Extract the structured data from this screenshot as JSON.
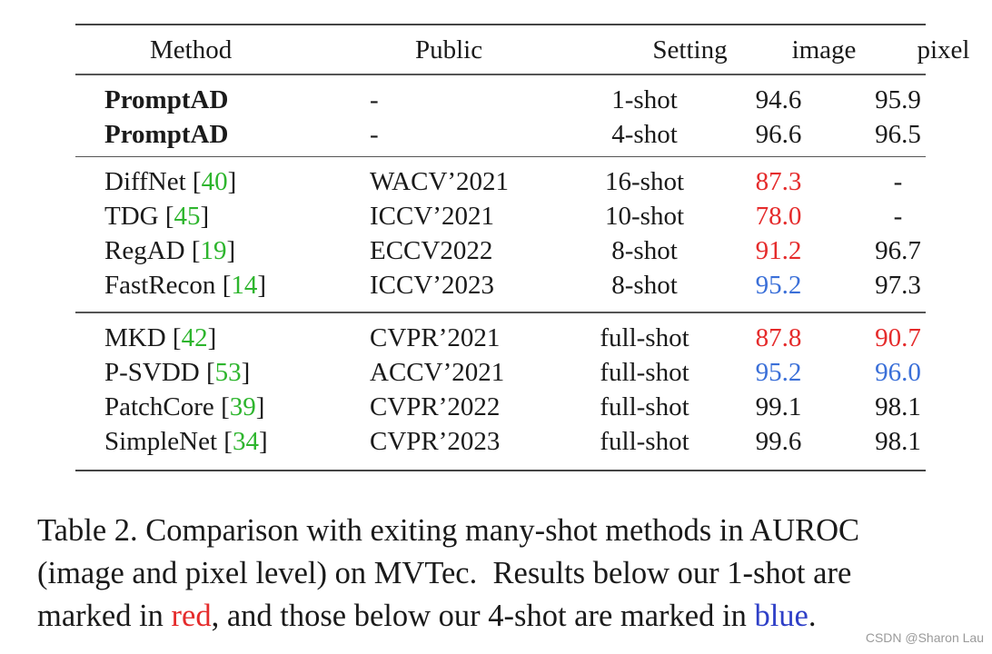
{
  "table": {
    "headers": [
      "Method",
      "Public",
      "Setting",
      "image",
      "pixel"
    ],
    "groups": [
      [
        {
          "method": "PromptAD",
          "ref": "",
          "public": "-",
          "setting": "1-shot",
          "image": "94.6",
          "pixel": "95.9",
          "image_color": "",
          "pixel_color": "",
          "bold": true
        },
        {
          "method": "PromptAD",
          "ref": "",
          "public": "-",
          "setting": "4-shot",
          "image": "96.6",
          "pixel": "96.5",
          "image_color": "",
          "pixel_color": "",
          "bold": true
        }
      ],
      [
        {
          "method": "DiffNet ",
          "ref": "40",
          "public": "WACV’2021",
          "setting": "16-shot",
          "image": "87.3",
          "pixel": "-",
          "image_color": "red",
          "pixel_color": "",
          "bold": false
        },
        {
          "method": "TDG ",
          "ref": "45",
          "public": "ICCV’2021",
          "setting": "10-shot",
          "image": "78.0",
          "pixel": "-",
          "image_color": "red",
          "pixel_color": "",
          "bold": false
        },
        {
          "method": "RegAD ",
          "ref": "19",
          "public": "ECCV2022",
          "setting": "8-shot",
          "image": "91.2",
          "pixel": "96.7",
          "image_color": "red",
          "pixel_color": "",
          "bold": false
        },
        {
          "method": "FastRecon ",
          "ref": "14",
          "public": "ICCV’2023",
          "setting": "8-shot",
          "image": "95.2",
          "pixel": "97.3",
          "image_color": "blue",
          "pixel_color": "",
          "bold": false
        }
      ],
      [
        {
          "method": "MKD ",
          "ref": "42",
          "public": "CVPR’2021",
          "setting": "full-shot",
          "image": "87.8",
          "pixel": "90.7",
          "image_color": "red",
          "pixel_color": "red",
          "bold": false
        },
        {
          "method": "P-SVDD ",
          "ref": "53",
          "public": "ACCV’2021",
          "setting": "full-shot",
          "image": "95.2",
          "pixel": "96.0",
          "image_color": "blue",
          "pixel_color": "blue",
          "bold": false
        },
        {
          "method": "PatchCore ",
          "ref": "39",
          "public": "CVPR’2022",
          "setting": "full-shot",
          "image": "99.1",
          "pixel": "98.1",
          "image_color": "",
          "pixel_color": "",
          "bold": false
        },
        {
          "method": "SimpleNet ",
          "ref": "34",
          "public": "CVPR’2023",
          "setting": "full-shot",
          "image": "99.6",
          "pixel": "98.1",
          "image_color": "",
          "pixel_color": "",
          "bold": false
        }
      ]
    ]
  },
  "caption": {
    "line1": "Table 2. Comparison with exiting many-shot methods in AUROC",
    "line2": "(image and pixel level) on MVTec.  Results below our 1-shot are",
    "line3_start": "marked in ",
    "red_word": "red",
    "line3_mid": ", and those below our 4-shot are marked in ",
    "blue_word": "blue",
    "line3_end": "."
  },
  "watermark": "CSDN @Sharon Lau",
  "colors": {
    "red": "#e52b2b",
    "blue": "#3a6fd8",
    "ref_green": "#2db52d",
    "caption_blue": "#2e3fc7"
  }
}
